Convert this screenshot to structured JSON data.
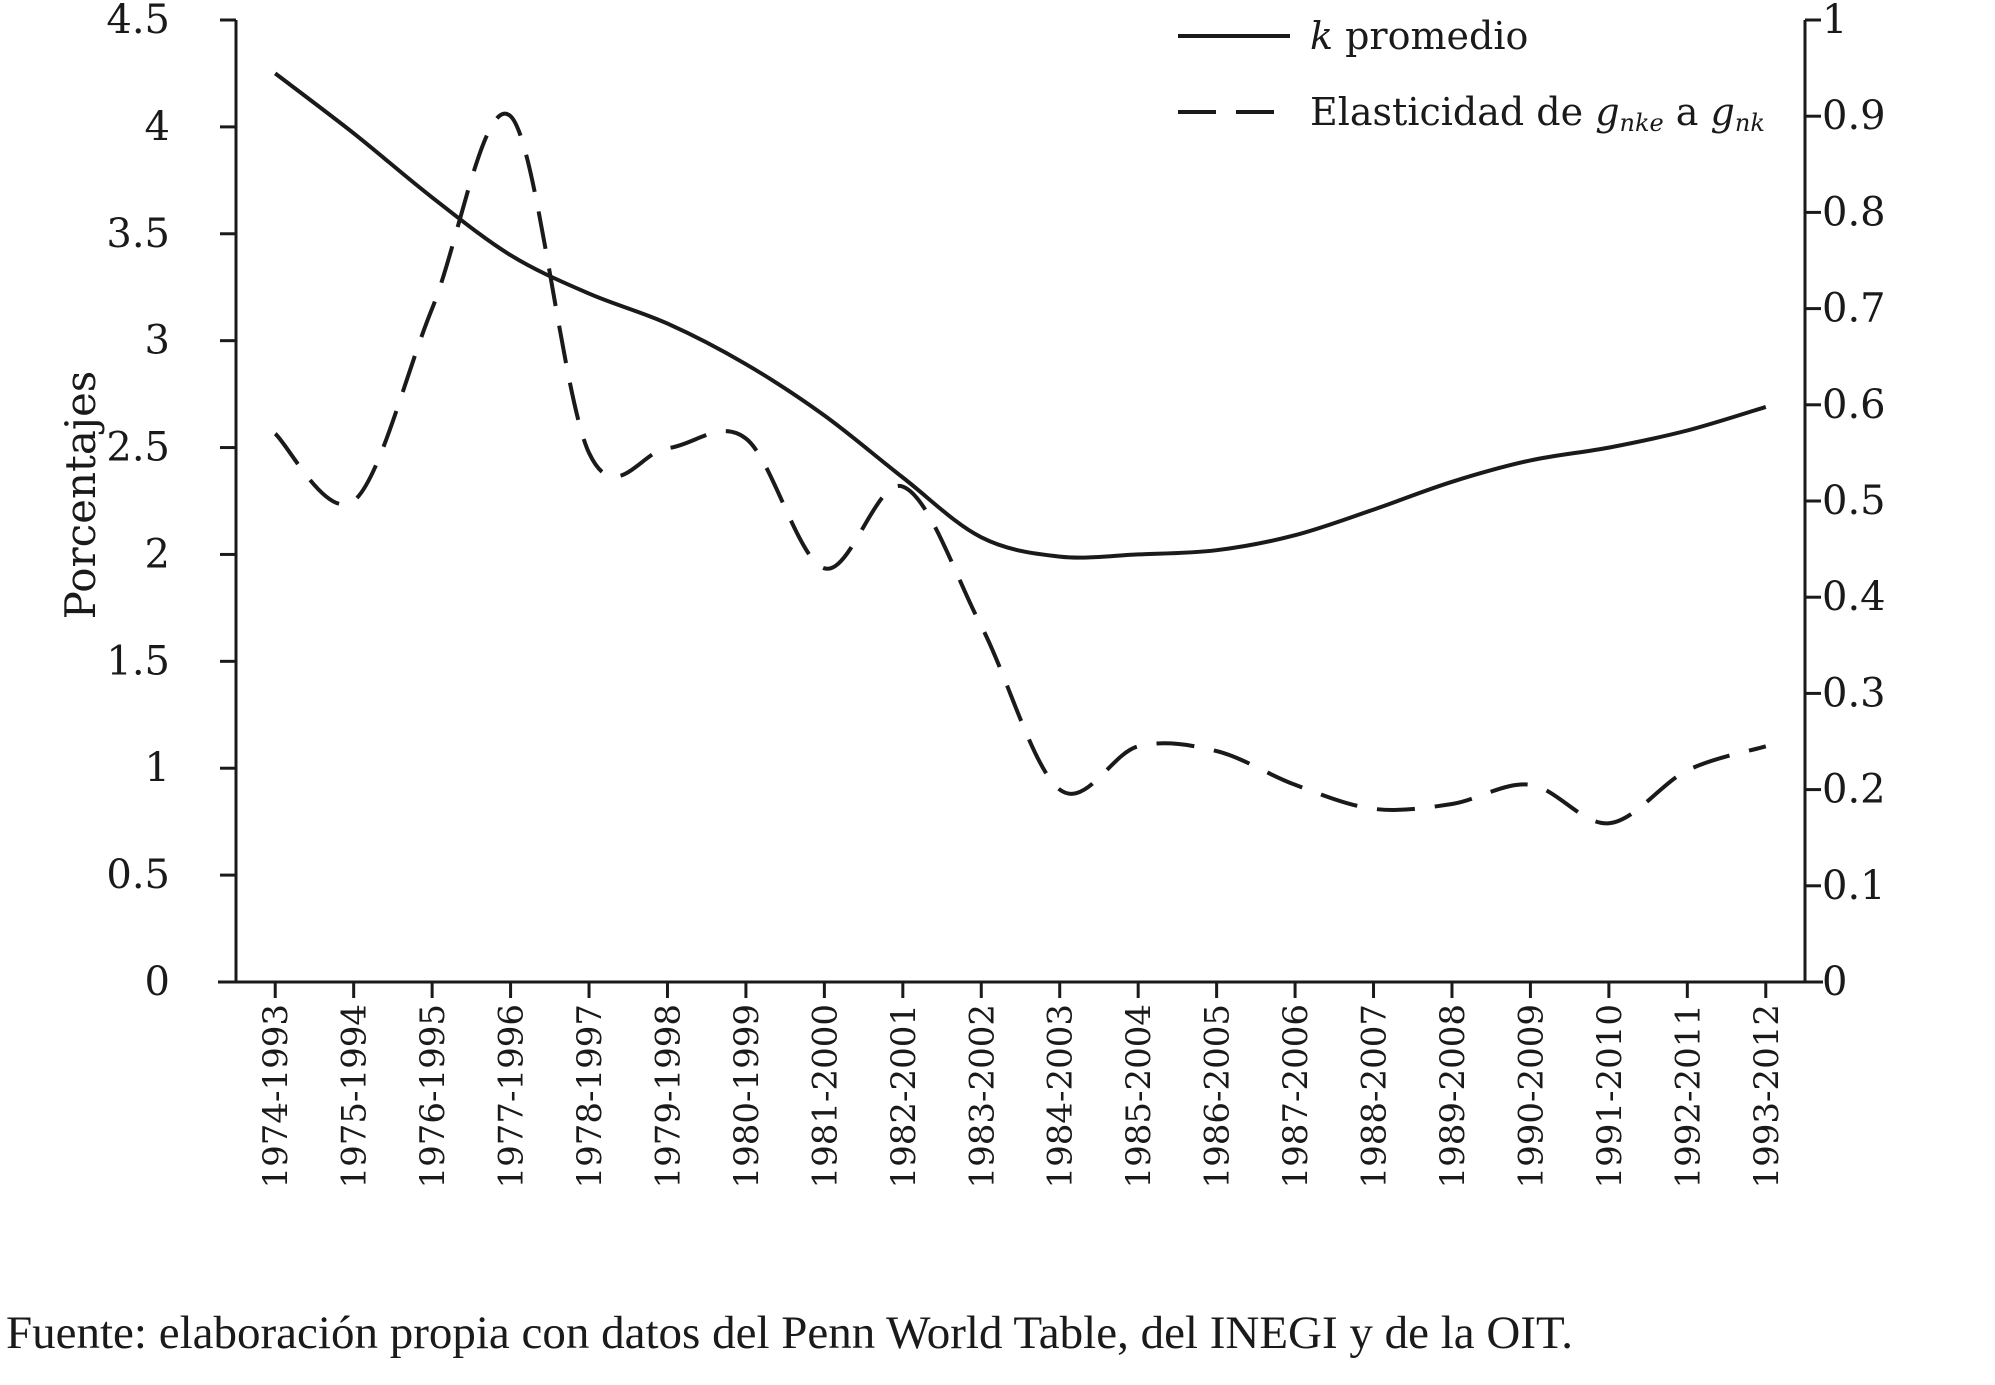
{
  "chart_data": {
    "type": "line",
    "categories": [
      "1974-1993",
      "1975-1994",
      "1976-1995",
      "1977-1996",
      "1978-1997",
      "1979-1998",
      "1980-1999",
      "1981-2000",
      "1982-2001",
      "1983-2002",
      "1984-2003",
      "1985-2004",
      "1986-2005",
      "1987-2006",
      "1988-2007",
      "1989-2008",
      "1990-2009",
      "1991-2010",
      "1992-2011",
      "1993-2012"
    ],
    "ylabel": "Porcentajes",
    "ylim": [
      0,
      4.5
    ],
    "yticks": [
      "0",
      "0.5",
      "1",
      "1.5",
      "2",
      "2.5",
      "3",
      "3.5",
      "4",
      "4.5"
    ],
    "y2lim": [
      0,
      1
    ],
    "y2ticks": [
      "0",
      "0.1",
      "0.2",
      "0.3",
      "0.4",
      "0.5",
      "0.6",
      "0.7",
      "0.8",
      "0.9",
      "1"
    ],
    "legend_position": "top-right",
    "series": [
      {
        "legend_italic": "k",
        "legend_text": " promedio",
        "axis": "left",
        "style": "solid",
        "values": [
          4.25,
          3.97,
          3.67,
          3.4,
          3.22,
          3.08,
          2.89,
          2.65,
          2.36,
          2.08,
          1.99,
          2.0,
          2.02,
          2.09,
          2.21,
          2.34,
          2.44,
          2.5,
          2.58,
          2.69
        ]
      },
      {
        "legend_parts": [
          {
            "text": "Elasticidad de ",
            "style": "normal"
          },
          {
            "text": "g",
            "style": "italic"
          },
          {
            "text": "nke",
            "style": "sub"
          },
          {
            "text": " a ",
            "style": "normal"
          },
          {
            "text": "g",
            "style": "italic"
          },
          {
            "text": "nk",
            "style": "sub"
          }
        ],
        "axis": "right",
        "style": "dashed",
        "values": [
          0.57,
          0.5,
          0.7,
          0.9,
          0.55,
          0.555,
          0.565,
          0.43,
          0.515,
          0.37,
          0.2,
          0.245,
          0.24,
          0.205,
          0.18,
          0.185,
          0.205,
          0.165,
          0.22,
          0.245
        ]
      }
    ],
    "colors": {
      "line": "#1a1a1a",
      "text": "#1a1a1a"
    }
  },
  "source_note": "Fuente: elaboración propia con datos del Penn World Table, del INEGI y de la OIT."
}
